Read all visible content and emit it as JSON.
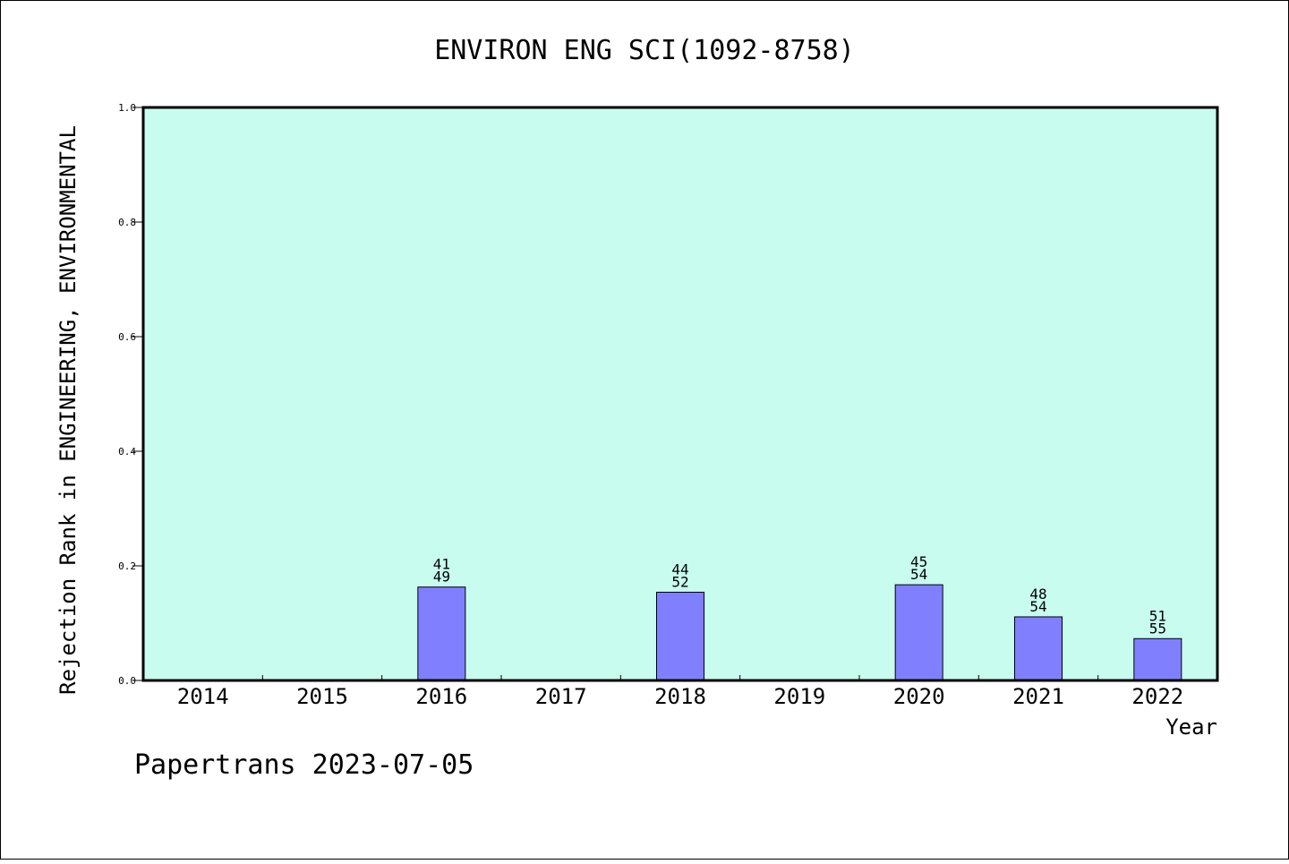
{
  "chart_data": {
    "type": "bar",
    "title": "ENVIRON ENG SCI(1092-8758)",
    "xlabel": "Year",
    "ylabel": "Rejection Rank in ENGINEERING, ENVIRONMENTAL",
    "ylim": [
      0,
      1
    ],
    "yticks": [
      "0.0",
      "0.2",
      "0.4",
      "0.6",
      "0.8",
      "1.0"
    ],
    "grid": false,
    "categories": [
      "2014",
      "2015",
      "2016",
      "2017",
      "2018",
      "2019",
      "2020",
      "2021",
      "2022"
    ],
    "values": [
      null,
      null,
      0.163,
      null,
      0.154,
      null,
      0.167,
      0.111,
      0.073
    ],
    "bar_labels": [
      null,
      null,
      [
        "41",
        "49"
      ],
      null,
      [
        "44",
        "52"
      ],
      null,
      [
        "45",
        "54"
      ],
      [
        "48",
        "54"
      ],
      [
        "51",
        "55"
      ]
    ],
    "colors": {
      "plot_background": "#c8fcee",
      "bar_fill": "#8080ff",
      "bar_stroke": "#000000"
    }
  },
  "footer": {
    "credit": "Papertrans 2023-07-05"
  }
}
